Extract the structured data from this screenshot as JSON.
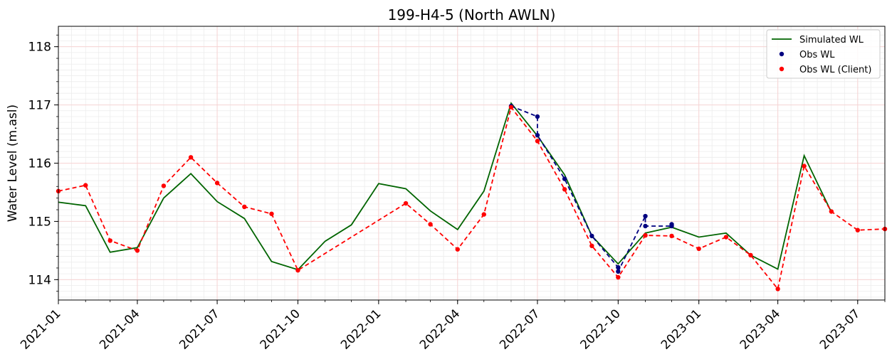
{
  "chart_data": {
    "type": "line",
    "title": "199-H4-5 (North AWLN)",
    "xlabel": "",
    "ylabel": "Water Level (m.asl)",
    "xlim": [
      "2021-01-01",
      "2023-08-01"
    ],
    "ylim": [
      113.65,
      118.35
    ],
    "y_ticks": [
      114,
      115,
      116,
      117,
      118
    ],
    "x_ticks": [
      "2021-01",
      "2021-04",
      "2021-07",
      "2021-10",
      "2022-01",
      "2022-04",
      "2022-07",
      "2022-10",
      "2023-01",
      "2023-04",
      "2023-07"
    ],
    "grid": true,
    "legend_position": "top-right",
    "colors": {
      "simulated": "#006400",
      "obs": "#000080",
      "obs_client": "#ff0000",
      "major_grid": "#f7d4d4",
      "minor_grid": "#ececec"
    },
    "series": [
      {
        "name": "Simulated WL",
        "style": "line",
        "color": "#006400",
        "points": [
          [
            "2021-01-01",
            115.33
          ],
          [
            "2021-02-01",
            115.27
          ],
          [
            "2021-03-01",
            114.47
          ],
          [
            "2021-04-01",
            114.55
          ],
          [
            "2021-05-01",
            115.4
          ],
          [
            "2021-06-01",
            115.82
          ],
          [
            "2021-07-01",
            115.34
          ],
          [
            "2021-08-01",
            115.05
          ],
          [
            "2021-09-01",
            114.31
          ],
          [
            "2021-10-01",
            114.17
          ],
          [
            "2021-11-01",
            114.66
          ],
          [
            "2021-12-01",
            114.94
          ],
          [
            "2022-01-01",
            115.65
          ],
          [
            "2022-02-01",
            115.56
          ],
          [
            "2022-03-01",
            115.18
          ],
          [
            "2022-04-01",
            114.86
          ],
          [
            "2022-05-01",
            115.52
          ],
          [
            "2022-06-01",
            117.03
          ],
          [
            "2022-07-01",
            116.47
          ],
          [
            "2022-08-01",
            115.8
          ],
          [
            "2022-09-01",
            114.75
          ],
          [
            "2022-10-01",
            114.27
          ],
          [
            "2022-11-01",
            114.8
          ],
          [
            "2022-12-01",
            114.9
          ],
          [
            "2023-01-01",
            114.73
          ],
          [
            "2023-02-01",
            114.8
          ],
          [
            "2023-03-01",
            114.42
          ],
          [
            "2023-04-01",
            114.18
          ],
          [
            "2023-05-01",
            116.13
          ],
          [
            "2023-06-01",
            115.16
          ]
        ]
      },
      {
        "name": "Obs WL",
        "style": "dashed-markers",
        "color": "#000080",
        "points": [
          [
            "2022-06-01",
            116.98
          ],
          [
            "2022-07-01",
            116.8
          ],
          [
            "2022-07-01",
            116.48
          ],
          [
            "2022-08-01",
            115.73
          ],
          [
            "2022-09-01",
            114.75
          ],
          [
            "2022-10-01",
            114.21
          ],
          [
            "2022-10-01",
            114.14
          ],
          [
            "2022-11-01",
            115.09
          ],
          [
            "2022-11-01",
            114.92
          ],
          [
            "2022-12-01",
            114.92
          ],
          [
            "2022-12-01",
            114.95
          ]
        ]
      },
      {
        "name": "Obs WL (Client)",
        "style": "dashed-markers",
        "color": "#ff0000",
        "points": [
          [
            "2021-01-01",
            115.52
          ],
          [
            "2021-02-01",
            115.62
          ],
          [
            "2021-03-01",
            114.67
          ],
          [
            "2021-04-01",
            114.5
          ],
          [
            "2021-05-01",
            115.61
          ],
          [
            "2021-06-01",
            116.1
          ],
          [
            "2021-07-01",
            115.66
          ],
          [
            "2021-08-01",
            115.25
          ],
          [
            "2021-09-01",
            115.13
          ],
          [
            "2021-10-01",
            114.16
          ],
          [
            "2022-02-01",
            115.31
          ],
          [
            "2022-03-01",
            114.95
          ],
          [
            "2022-04-01",
            114.52
          ],
          [
            "2022-05-01",
            115.12
          ],
          [
            "2022-06-01",
            116.96
          ],
          [
            "2022-07-01",
            116.38
          ],
          [
            "2022-08-01",
            115.55
          ],
          [
            "2022-09-01",
            114.58
          ],
          [
            "2022-10-01",
            114.04
          ],
          [
            "2022-11-01",
            114.76
          ],
          [
            "2022-12-01",
            114.75
          ],
          [
            "2023-01-01",
            114.53
          ],
          [
            "2023-02-01",
            114.73
          ],
          [
            "2023-03-01",
            114.42
          ],
          [
            "2023-04-01",
            113.84
          ],
          [
            "2023-05-01",
            115.95
          ],
          [
            "2023-06-01",
            115.17
          ],
          [
            "2023-07-01",
            114.85
          ],
          [
            "2023-08-01",
            114.87
          ]
        ]
      }
    ]
  }
}
